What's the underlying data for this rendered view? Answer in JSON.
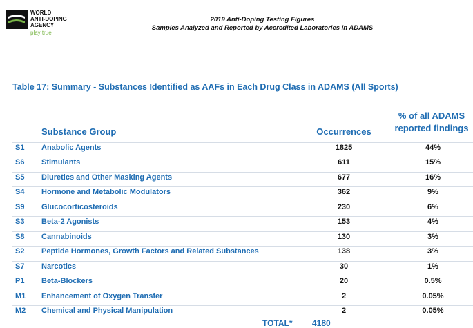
{
  "logo": {
    "lines": [
      "WORLD",
      "ANTI-DOPING",
      "AGENCY"
    ],
    "tagline": "play true"
  },
  "header": {
    "title": "2019 Anti-Doping Testing Figures",
    "subtitle": "Samples Analyzed and Reported by Accredited Laboratories in ADAMS"
  },
  "table": {
    "title": "Table 17: Summary - Substances Identified as AAFs in Each Drug Class in ADAMS (All Sports)",
    "columns": [
      "Substance Group",
      "Occurrences",
      [
        "% of all ADAMS",
        "reported findings"
      ]
    ],
    "rows": [
      [
        "S1",
        "Anabolic Agents",
        1825,
        "44%"
      ],
      [
        "S6",
        "Stimulants",
        611,
        "15%"
      ],
      [
        "S5",
        "Diuretics and Other Masking Agents",
        677,
        "16%"
      ],
      [
        "S4",
        "Hormone and Metabolic Modulators",
        362,
        "9%"
      ],
      [
        "S9",
        "Glucocorticosteroids",
        230,
        "6%"
      ],
      [
        "S3",
        "Beta-2 Agonists",
        153,
        "4%"
      ],
      [
        "S8",
        "Cannabinoids",
        130,
        "3%"
      ],
      [
        "S2",
        "Peptide Hormones, Growth Factors and Related Substances",
        138,
        "3%"
      ],
      [
        "S7",
        "Narcotics",
        30,
        "1%"
      ],
      [
        "P1",
        "Beta-Blockers",
        20,
        "0.5%"
      ],
      [
        "M1",
        "Enhancement of Oxygen Transfer",
        2,
        "0.05%"
      ],
      [
        "M2",
        "Chemical and Physical Manipulation",
        2,
        "0.05%"
      ]
    ],
    "total": {
      "label": "TOTAL*",
      "value": 4180
    }
  }
}
